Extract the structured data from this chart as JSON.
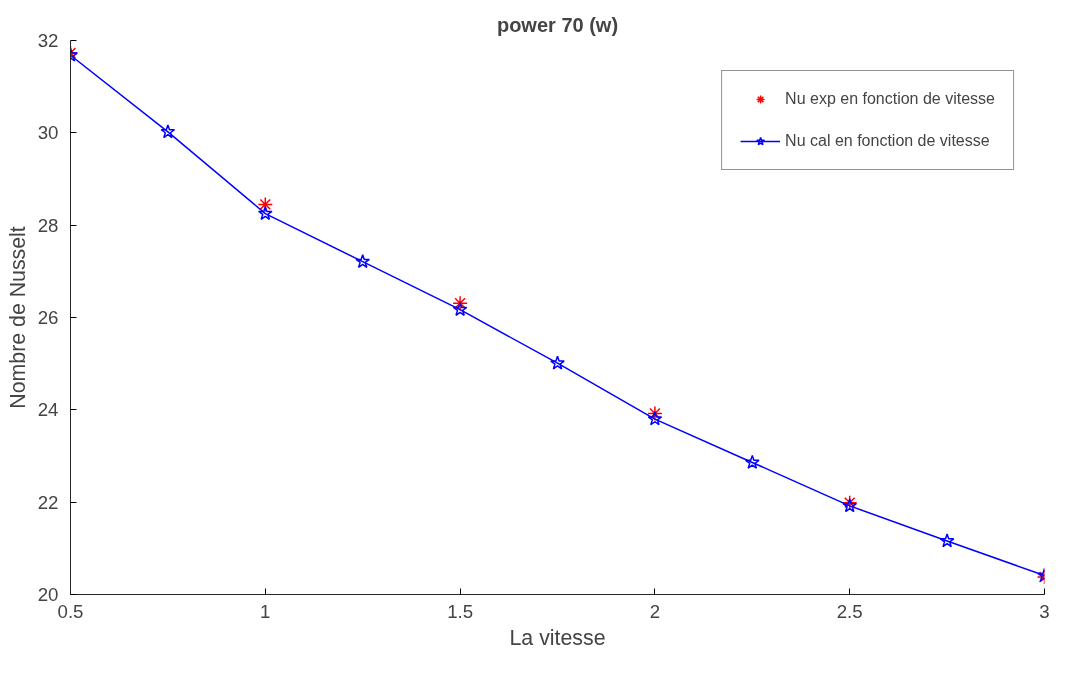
{
  "chart_data": {
    "type": "line",
    "title": "power 70 (w)",
    "xlabel": "La vitesse",
    "ylabel": "Nombre de Nusselt",
    "xlim": [
      0.5,
      3
    ],
    "xticks": [
      0.5,
      1,
      1.5,
      2,
      2.5,
      3
    ],
    "ylim": [
      20,
      32
    ],
    "yticks": [
      20,
      22,
      24,
      26,
      28,
      30,
      32
    ],
    "grid": false,
    "legend": "top right",
    "series": [
      {
        "name": "Nu exp en fonction de vitesse",
        "type": "scatter",
        "marker": "cross",
        "color": "#ff0000",
        "x": [
          0.5,
          1,
          1.5,
          2,
          2.5,
          3
        ],
        "values": [
          31.73,
          28.45,
          26.31,
          23.92,
          21.99,
          20.38
        ]
      },
      {
        "name": "Nu cal en fonction de vitesse",
        "marker": "star",
        "line_style": "solid",
        "color": "#0000ff",
        "x": [
          0.5,
          0.75,
          1,
          1.25,
          1.5,
          1.75,
          2,
          2.25,
          2.5,
          2.75,
          3
        ],
        "values": [
          31.68,
          30.02,
          28.25,
          27.21,
          26.17,
          25.01,
          23.8,
          22.86,
          21.92,
          21.16,
          20.41
        ]
      }
    ]
  }
}
